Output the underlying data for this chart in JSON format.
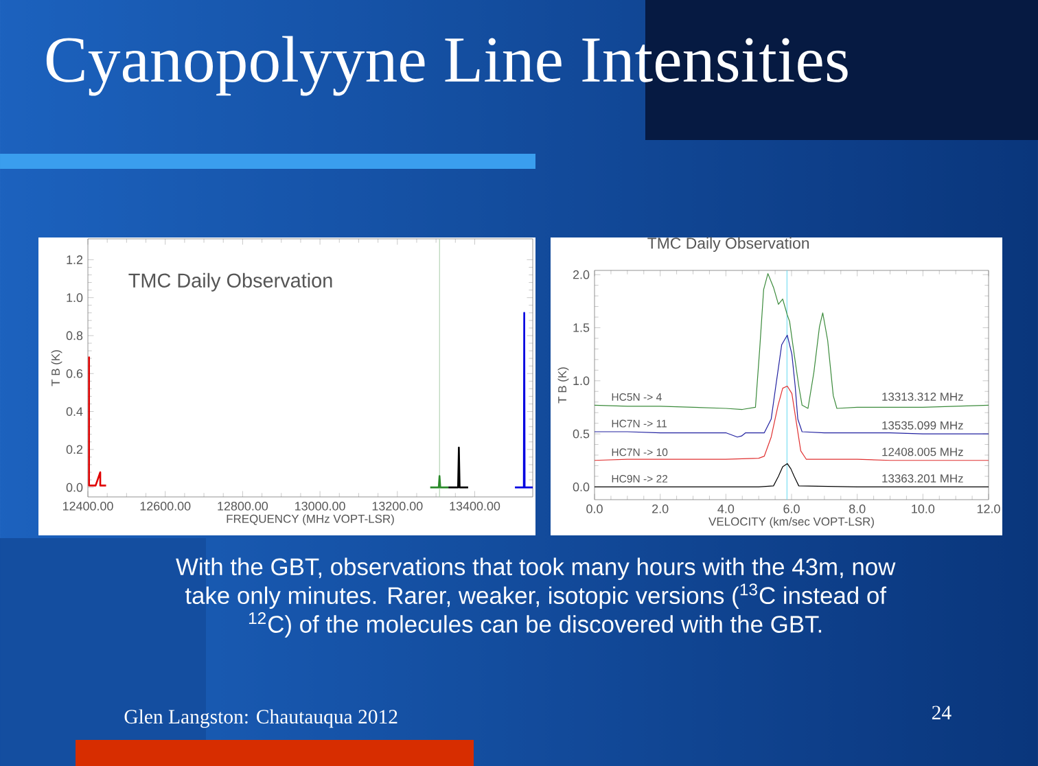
{
  "chart_data": [
    {
      "type": "other",
      "title": "Cyanopolyyne Line Intensities"
    },
    {
      "type": "line",
      "title": "TMC Daily Observation",
      "xlabel": "FREQUENCY (MHz VOPT-LSR)",
      "ylabel": "T B (K)",
      "xlim": [
        12400,
        13550
      ],
      "ylim": [
        -0.05,
        1.31
      ],
      "xticks": [
        {
          "value": 12400,
          "label": "12400.00"
        },
        {
          "value": 12600,
          "label": "12600.00"
        },
        {
          "value": 12800,
          "label": "12800.00"
        },
        {
          "value": 13000,
          "label": "13000.00"
        },
        {
          "value": 13200,
          "label": "13200.00"
        },
        {
          "value": 13400,
          "label": "13400.00"
        }
      ],
      "yticks": [
        {
          "value": 0,
          "label": "0.0"
        },
        0.2,
        0.4,
        0.6,
        0.8,
        {
          "value": 1,
          "label": "1.0"
        },
        1.2
      ],
      "series": [
        {
          "color": "#e00000",
          "x": [
            12403,
            12403,
            12420,
            12432,
            12432,
            12447
          ],
          "values": [
            0.69,
            0.01,
            0.01,
            0.08,
            0.01,
            0.01
          ]
        },
        {
          "color": "#2a8a2a",
          "x": [
            13285,
            13307,
            13309,
            13311,
            13332
          ],
          "values": [
            0.0,
            0.0,
            0.06,
            0.0,
            0.0
          ]
        },
        {
          "color": "#000000",
          "x": [
            13332,
            13357,
            13359,
            13361,
            13383
          ],
          "values": [
            0.0,
            0.0,
            0.21,
            0.0,
            0.0
          ]
        },
        {
          "color": "#0000e0",
          "x": [
            13504,
            13527,
            13528,
            13529,
            13550
          ],
          "values": [
            0.0,
            0.0,
            0.92,
            0.0,
            0.0
          ]
        }
      ],
      "ref_lines": [
        {
          "axis": "x",
          "value": 13309,
          "color": "#a8cca8"
        }
      ]
    },
    {
      "type": "line",
      "title": "TMC Daily Observation",
      "xlabel": "VELOCITY (km/sec VOPT-LSR)",
      "ylabel": "T B (K)",
      "xlim": [
        0,
        12
      ],
      "ylim": [
        -0.12,
        2.04
      ],
      "xticks": [
        {
          "value": 0,
          "label": "0.0"
        },
        {
          "value": 2,
          "label": "2.0"
        },
        {
          "value": 4,
          "label": "4.0"
        },
        {
          "value": 6,
          "label": "6.0"
        },
        {
          "value": 8,
          "label": "8.0"
        },
        {
          "value": 10,
          "label": "10.0"
        },
        {
          "value": 12,
          "label": "12.0"
        }
      ],
      "yticks": [
        {
          "value": 0,
          "label": "0.0"
        },
        0.5,
        {
          "value": 1,
          "label": "1.0"
        },
        1.5,
        {
          "value": 2,
          "label": "2.0"
        }
      ],
      "series": [
        {
          "name": "HC5N -> 4",
          "color": "#3a8a3a",
          "x": [
            0,
            1,
            2,
            3,
            4,
            4.5,
            4.9,
            5.03,
            5.15,
            5.28,
            5.45,
            5.6,
            5.73,
            5.87,
            5.94,
            6.08,
            6.22,
            6.32,
            6.5,
            6.68,
            6.85,
            6.95,
            7.1,
            7.27,
            7.38,
            8,
            9,
            10,
            11,
            12
          ],
          "values": [
            0.77,
            0.76,
            0.76,
            0.75,
            0.74,
            0.73,
            0.75,
            1.3,
            1.86,
            2.01,
            1.88,
            1.72,
            1.77,
            1.62,
            1.56,
            1.25,
            0.95,
            0.77,
            0.74,
            1.08,
            1.51,
            1.64,
            1.38,
            0.86,
            0.74,
            0.75,
            0.75,
            0.75,
            0.76,
            0.77
          ]
        },
        {
          "name": "HC7N -> 11",
          "color": "#2020a0",
          "x": [
            0,
            1,
            2,
            3,
            4,
            4.35,
            4.48,
            4.6,
            5.17,
            5.38,
            5.52,
            5.7,
            5.87,
            6.01,
            6.11,
            6.19,
            6.32,
            7,
            8,
            9,
            10,
            11,
            12
          ],
          "values": [
            0.52,
            0.52,
            0.51,
            0.51,
            0.51,
            0.47,
            0.48,
            0.51,
            0.51,
            0.64,
            0.95,
            1.34,
            1.43,
            1.25,
            0.95,
            0.64,
            0.52,
            0.51,
            0.51,
            0.51,
            0.5,
            0.5,
            0.5
          ]
        },
        {
          "name": "HC7N -> 10",
          "color": "#e03030",
          "x": [
            0,
            1,
            2,
            3,
            4,
            5,
            5.17,
            5.38,
            5.59,
            5.73,
            5.87,
            6.01,
            6.15,
            6.28,
            6.45,
            7,
            8,
            9,
            10,
            11,
            12
          ],
          "values": [
            0.25,
            0.26,
            0.26,
            0.26,
            0.26,
            0.27,
            0.29,
            0.47,
            0.77,
            0.93,
            0.95,
            0.88,
            0.6,
            0.34,
            0.26,
            0.26,
            0.26,
            0.25,
            0.25,
            0.25,
            0.25
          ]
        },
        {
          "name": "HC9N -> 22",
          "color": "#000000",
          "x": [
            0,
            2,
            4,
            5,
            5.45,
            5.6,
            5.73,
            5.87,
            5.98,
            6.08,
            6.22,
            8,
            10,
            12
          ],
          "values": [
            0.0,
            0.0,
            0.0,
            0.0,
            0.01,
            0.1,
            0.19,
            0.22,
            0.17,
            0.1,
            0.01,
            0.0,
            0.0,
            0.0
          ]
        }
      ],
      "ref_lines": [
        {
          "axis": "x",
          "value": 5.86,
          "color": "#60d8f0"
        }
      ],
      "annotations": [
        "13313.312 MHz",
        "13535.099 MHz",
        "12408.005 MHz",
        "13363.201 MHz"
      ]
    },
    {
      "type": "other",
      "annotations": [
        "With the GBT, observations that took many hours with the 43m, now take only minutes.   Rarer, weaker, isotopic versions ($^{13}$C instead of $^{12}$C) of the molecules can be discovered with the GBT.",
        "Glen Langston: Chautauqua 2012",
        "24"
      ]
    }
  ]
}
